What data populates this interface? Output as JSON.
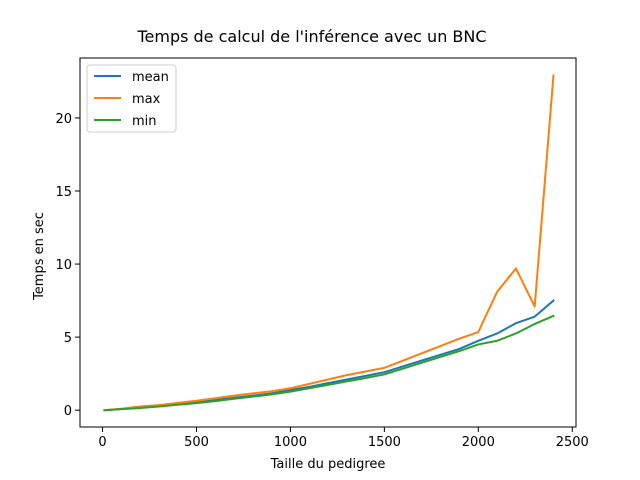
{
  "chart_data": {
    "type": "line",
    "title": "Temps de calcul de l'inférence avec un BNC",
    "xlabel": "Taille du pedigree",
    "ylabel": "Temps en sec",
    "xlim": [
      -120,
      2520
    ],
    "ylim": [
      -1.15,
      24.1
    ],
    "x_ticks": [
      "0",
      "500",
      "1000",
      "1500",
      "2000",
      "2500"
    ],
    "y_ticks": [
      "0",
      "5",
      "10",
      "15",
      "20"
    ],
    "x_tick_values": [
      0,
      500,
      1000,
      1500,
      2000,
      2500
    ],
    "y_tick_values": [
      0,
      5,
      10,
      15,
      20
    ],
    "legend_position": "upper-left",
    "grid": false,
    "series": [
      {
        "name": "mean",
        "color": "#1f77b4",
        "x": [
          10,
          100,
          200,
          300,
          400,
          500,
          600,
          700,
          800,
          900,
          1000,
          1100,
          1200,
          1300,
          1400,
          1500,
          1600,
          1700,
          1800,
          1900,
          2000,
          2100,
          2200,
          2300,
          2400
        ],
        "y": [
          0.0,
          0.08,
          0.18,
          0.3,
          0.42,
          0.55,
          0.7,
          0.85,
          1.0,
          1.15,
          1.38,
          1.6,
          1.85,
          2.1,
          2.35,
          2.6,
          3.0,
          3.4,
          3.8,
          4.2,
          4.75,
          5.25,
          5.95,
          6.4,
          7.5
        ]
      },
      {
        "name": "max",
        "color": "#ff7f0e",
        "x": [
          10,
          100,
          200,
          300,
          400,
          500,
          600,
          700,
          800,
          900,
          1000,
          1100,
          1200,
          1300,
          1400,
          1500,
          1600,
          1700,
          1800,
          1900,
          2000,
          2100,
          2200,
          2300,
          2400
        ],
        "y": [
          0.0,
          0.1,
          0.25,
          0.35,
          0.5,
          0.65,
          0.82,
          1.0,
          1.15,
          1.3,
          1.5,
          1.8,
          2.1,
          2.4,
          2.65,
          2.9,
          3.4,
          3.9,
          4.4,
          4.9,
          5.35,
          8.1,
          9.7,
          7.1,
          22.9
        ]
      },
      {
        "name": "min",
        "color": "#2ca02c",
        "x": [
          10,
          100,
          200,
          300,
          400,
          500,
          600,
          700,
          800,
          900,
          1000,
          1100,
          1200,
          1300,
          1400,
          1500,
          1600,
          1700,
          1800,
          1900,
          2000,
          2100,
          2200,
          2300,
          2400
        ],
        "y": [
          0.0,
          0.07,
          0.15,
          0.25,
          0.37,
          0.48,
          0.62,
          0.78,
          0.93,
          1.08,
          1.27,
          1.5,
          1.73,
          1.97,
          2.2,
          2.45,
          2.85,
          3.25,
          3.65,
          4.05,
          4.5,
          4.75,
          5.25,
          5.9,
          6.45
        ]
      }
    ]
  }
}
